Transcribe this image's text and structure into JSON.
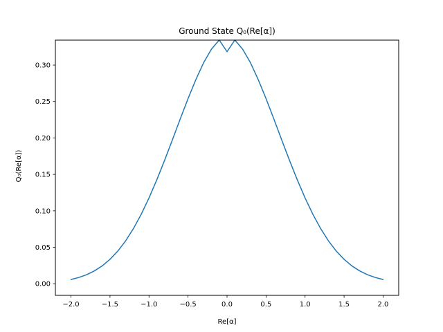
{
  "chart_data": {
    "type": "line",
    "title": "Ground State Q₀(Re[α])",
    "xlabel": "Re[α]",
    "ylabel": "Q₀(Re[α])",
    "xlim": [
      -2.2,
      2.2
    ],
    "ylim": [
      -0.0159,
      0.3342
    ],
    "xticks": [
      -2.0,
      -1.5,
      -1.0,
      -0.5,
      0.0,
      0.5,
      1.0,
      1.5,
      2.0
    ],
    "xtick_labels": [
      "−2.0",
      "−1.5",
      "−1.0",
      "−0.5",
      "0.0",
      "0.5",
      "1.0",
      "1.5",
      "2.0"
    ],
    "yticks": [
      0.0,
      0.05,
      0.1,
      0.15,
      0.2,
      0.25,
      0.3
    ],
    "ytick_labels": [
      "0.00",
      "0.05",
      "0.10",
      "0.15",
      "0.20",
      "0.25",
      "0.30"
    ],
    "grid": false,
    "series": [
      {
        "color": "#1f77b4",
        "x": [
          -2.0,
          -1.9,
          -1.8,
          -1.7,
          -1.6,
          -1.5,
          -1.4,
          -1.3,
          -1.2,
          -1.1,
          -1.0,
          -0.9,
          -0.8,
          -0.7,
          -0.6,
          -0.5,
          -0.4,
          -0.3,
          -0.2,
          -0.1,
          0.0,
          0.1,
          0.2,
          0.3,
          0.4,
          0.5,
          0.6,
          0.7,
          0.8,
          0.9,
          1.0,
          1.1,
          1.2,
          1.3,
          1.4,
          1.5,
          1.6,
          1.7,
          1.8,
          1.9,
          2.0
        ],
        "y": [
          0.0058,
          0.0086,
          0.0124,
          0.0176,
          0.0245,
          0.0335,
          0.0448,
          0.0588,
          0.0756,
          0.0953,
          0.1177,
          0.1426,
          0.1694,
          0.1975,
          0.226,
          0.2539,
          0.28,
          0.3032,
          0.3217,
          0.3343,
          0.3183,
          0.3343,
          0.3217,
          0.3032,
          0.28,
          0.2539,
          0.226,
          0.1975,
          0.1694,
          0.1426,
          0.1177,
          0.0953,
          0.0756,
          0.0588,
          0.0448,
          0.0335,
          0.0245,
          0.0176,
          0.0124,
          0.0086,
          0.0058
        ]
      }
    ]
  }
}
